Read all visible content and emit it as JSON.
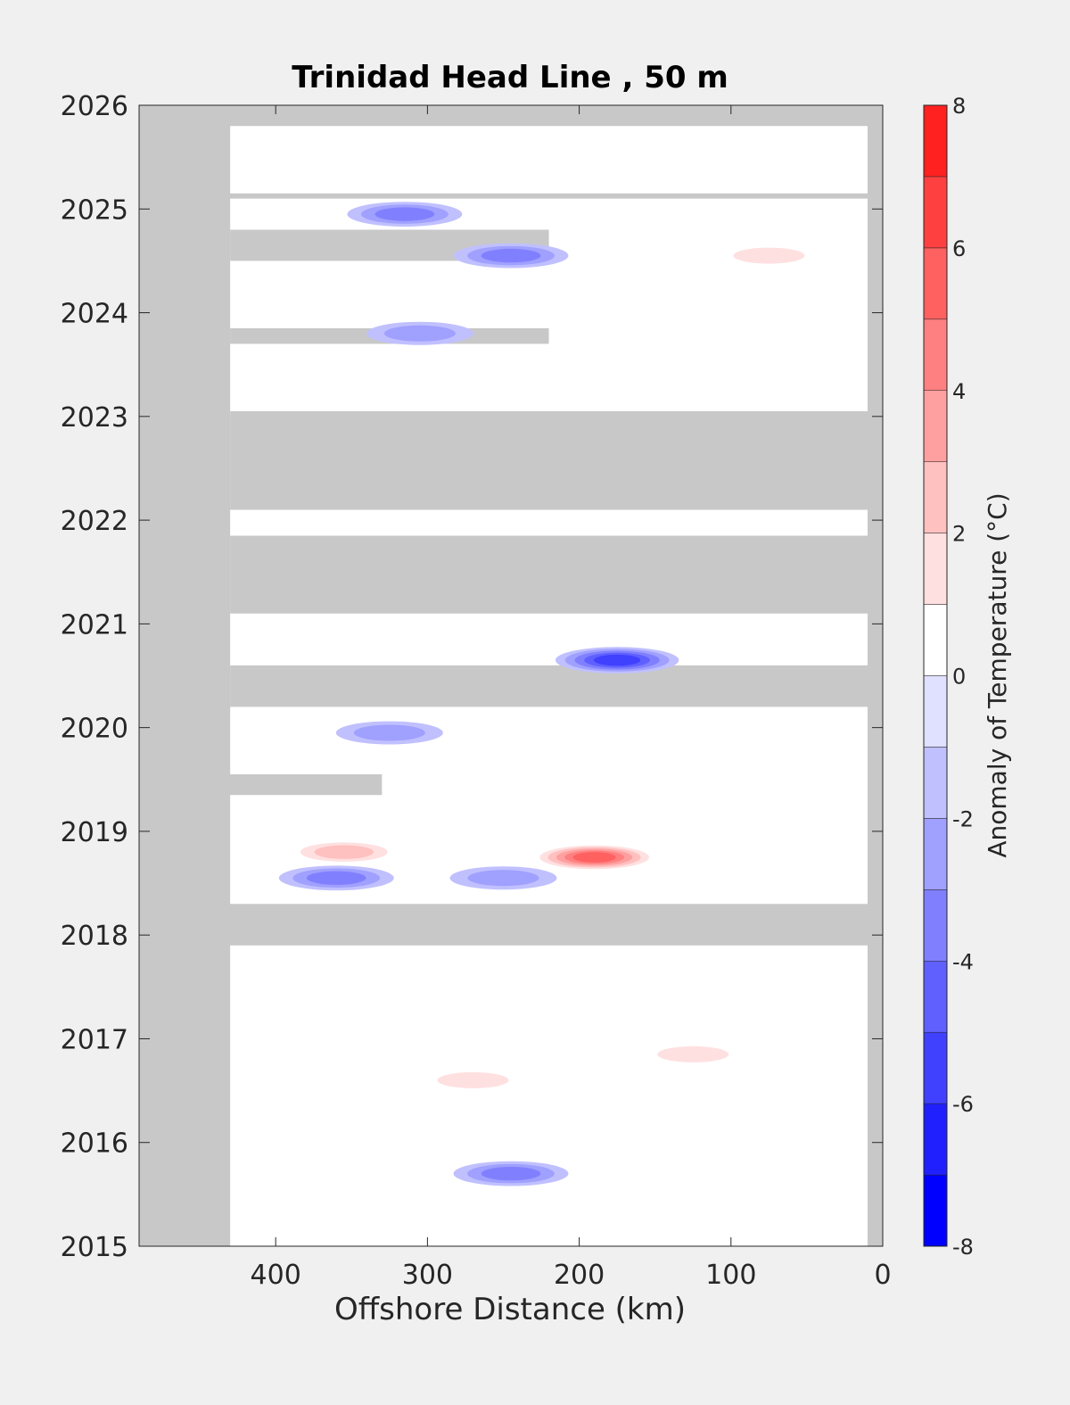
{
  "chart_data": {
    "type": "heatmap",
    "title": "Trinidad Head Line , 50 m",
    "xlabel": "Offshore Distance (km)",
    "ylabel": "",
    "xlim": [
      490,
      0
    ],
    "ylim": [
      2015,
      2026
    ],
    "x_ticks": [
      400,
      300,
      200,
      100,
      0
    ],
    "x_tick_labels": [
      "400",
      "300",
      "200",
      "100",
      "0"
    ],
    "y_ticks": [
      2015,
      2016,
      2017,
      2018,
      2019,
      2020,
      2021,
      2022,
      2023,
      2024,
      2025,
      2026
    ],
    "y_tick_labels": [
      "2015",
      "2016",
      "2017",
      "2018",
      "2019",
      "2020",
      "2021",
      "2022",
      "2023",
      "2024",
      "2025",
      "2026"
    ],
    "colorbar": {
      "label": "Anomaly of Temperature (°C)",
      "range": [
        -8,
        8
      ],
      "ticks": [
        -8,
        -6,
        -4,
        -2,
        0,
        2,
        4,
        6,
        8
      ],
      "tick_labels": [
        "-8",
        "-6",
        "-4",
        "-2",
        "0",
        "2",
        "4",
        "6",
        "8"
      ],
      "levels": [
        -8,
        -7,
        -6,
        -5,
        -4,
        -3,
        -2,
        -1,
        0,
        1,
        2,
        3,
        4,
        5,
        6,
        7,
        8
      ],
      "colors": [
        "#0000ff",
        "#2020ff",
        "#4040ff",
        "#6060ff",
        "#8080ff",
        "#a0a0ff",
        "#c0c0ff",
        "#e0e0ff",
        "#ffffff",
        "#ffffff",
        "#ffe0e0",
        "#ffc0c0",
        "#ffa0a0",
        "#ff8080",
        "#ff6060",
        "#ff4040",
        "#ff2020",
        "#ff0000"
      ]
    },
    "no_data_color": "#c8c8c8",
    "no_data_regions": [
      {
        "x": [
          490,
          430
        ],
        "y": [
          2015.0,
          2026.0
        ]
      },
      {
        "x": [
          430,
          10
        ],
        "y": [
          2022.1,
          2023.05
        ]
      },
      {
        "x": [
          430,
          10
        ],
        "y": [
          2021.1,
          2021.85
        ]
      },
      {
        "x": [
          430,
          10
        ],
        "y": [
          2020.2,
          2020.6
        ]
      },
      {
        "x": [
          490,
          10
        ],
        "y": [
          2017.9,
          2018.3
        ]
      },
      {
        "x": [
          490,
          330
        ],
        "y": [
          2019.35,
          2019.55
        ]
      },
      {
        "x": [
          430,
          220
        ],
        "y": [
          2023.7,
          2023.85
        ]
      },
      {
        "x": [
          430,
          220
        ],
        "y": [
          2024.5,
          2024.8
        ]
      },
      {
        "x": [
          490,
          10
        ],
        "y": [
          2025.1,
          2025.15
        ]
      },
      {
        "x": [
          490,
          10
        ],
        "y": [
          2025.8,
          2026.0
        ]
      },
      {
        "x": [
          10,
          0
        ],
        "y": [
          2015.0,
          2026.0
        ]
      }
    ],
    "anomaly_features": [
      {
        "x": 190,
        "y": 2018.75,
        "value": 6.5
      },
      {
        "x": 355,
        "y": 2018.8,
        "value": 3.5
      },
      {
        "x": 360,
        "y": 2018.55,
        "value": -3.5
      },
      {
        "x": 250,
        "y": 2018.55,
        "value": -3
      },
      {
        "x": 175,
        "y": 2020.65,
        "value": -6
      },
      {
        "x": 305,
        "y": 2023.8,
        "value": -3
      },
      {
        "x": 245,
        "y": 2024.55,
        "value": -4
      },
      {
        "x": 315,
        "y": 2024.95,
        "value": -4
      },
      {
        "x": 245,
        "y": 2015.7,
        "value": -3.5
      },
      {
        "x": 270,
        "y": 2016.6,
        "value": 3
      },
      {
        "x": 125,
        "y": 2016.85,
        "value": 3
      },
      {
        "x": 325,
        "y": 2019.95,
        "value": -3
      },
      {
        "x": 75,
        "y": 2024.55,
        "value": 3
      }
    ]
  }
}
